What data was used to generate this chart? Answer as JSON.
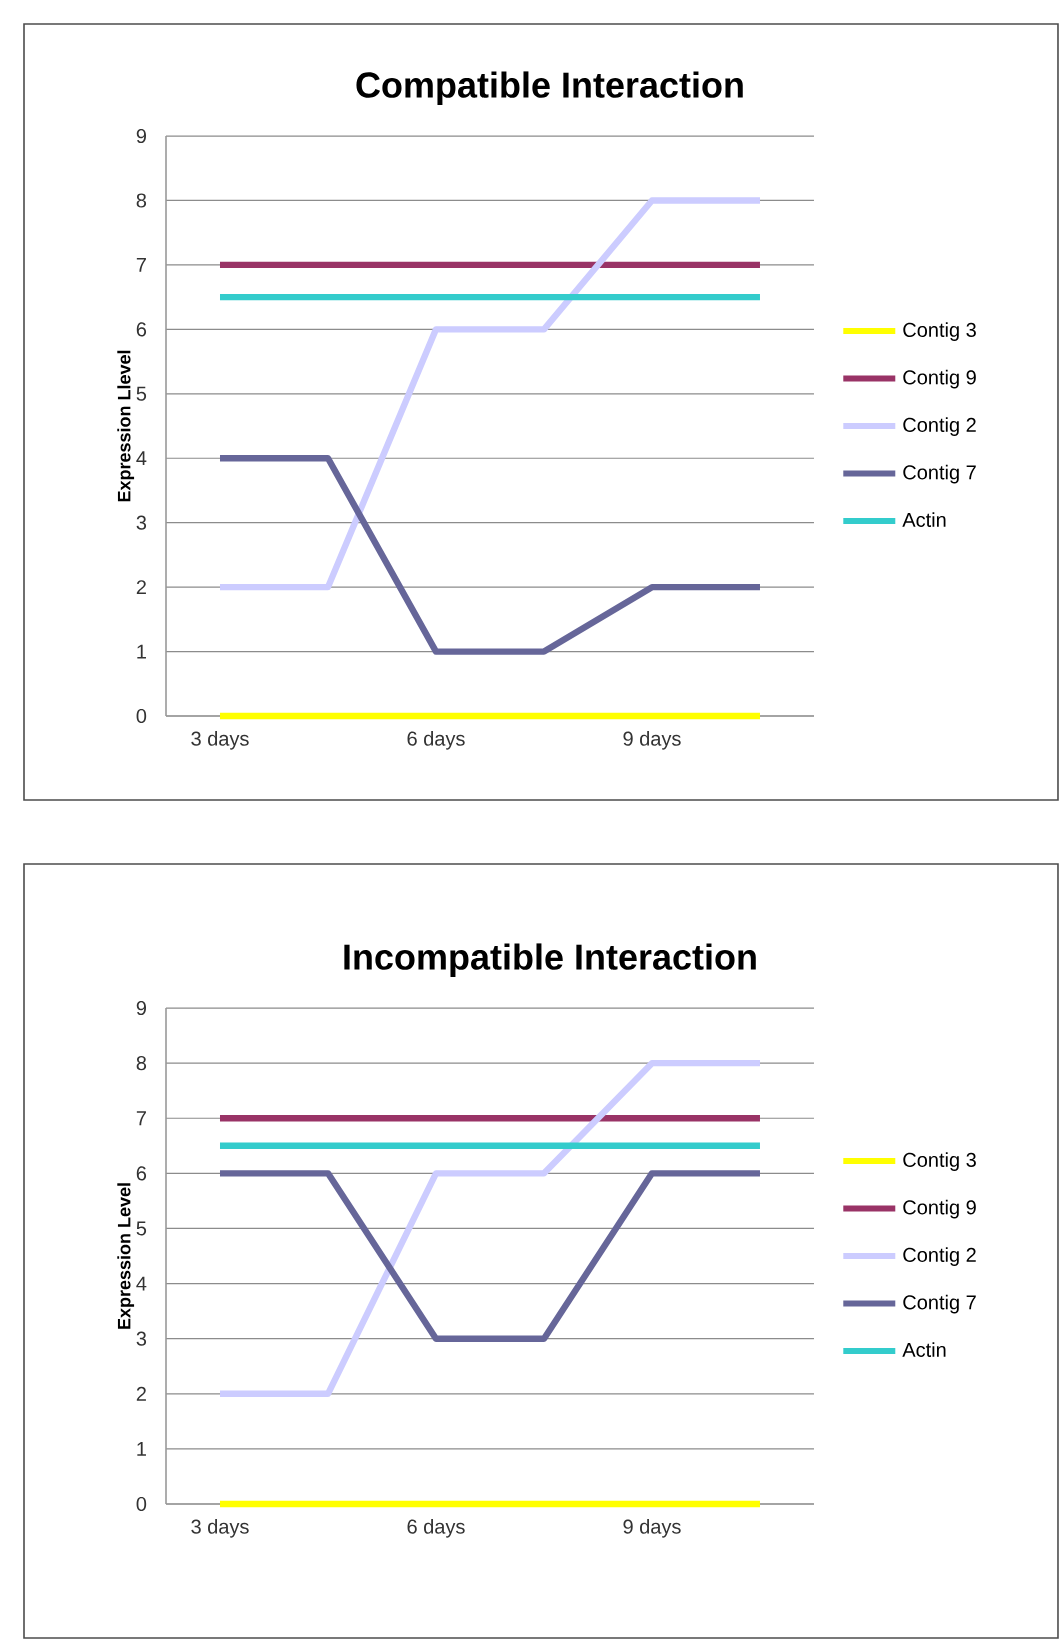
{
  "chart_data": [
    {
      "type": "line",
      "title": "Compatible Interaction",
      "ylabel": "Expression Llevel",
      "categories": [
        "3 days",
        null,
        "6 days",
        null,
        "9 days",
        null
      ],
      "ylim": [
        0,
        9
      ],
      "yticks": [
        0,
        1,
        2,
        3,
        4,
        5,
        6,
        7,
        8,
        9
      ],
      "grid": "y",
      "legend": "right",
      "marker": "none",
      "series": [
        {
          "name": "Contig 3",
          "color": "#ffff00",
          "values": [
            0,
            0,
            0,
            0,
            0,
            0
          ]
        },
        {
          "name": "Contig 9",
          "color": "#993366",
          "values": [
            7,
            7,
            7,
            7,
            7,
            7
          ]
        },
        {
          "name": "Contig 2",
          "color": "#ccccff",
          "values": [
            2,
            2,
            6,
            6,
            8,
            8
          ]
        },
        {
          "name": "Contig 7",
          "color": "#666699",
          "values": [
            4,
            4,
            1,
            1,
            2,
            2
          ]
        },
        {
          "name": "Actin",
          "color": "#33cccc",
          "values": [
            6.5,
            6.5,
            6.5,
            6.5,
            6.5,
            6.5
          ]
        }
      ]
    },
    {
      "type": "line",
      "title": "Incompatible Interaction",
      "ylabel": "Expression Level",
      "categories": [
        "3 days",
        null,
        "6 days",
        null,
        "9 days",
        null
      ],
      "ylim": [
        0,
        9
      ],
      "yticks": [
        0,
        1,
        2,
        3,
        4,
        5,
        6,
        7,
        8,
        9
      ],
      "grid": "y",
      "legend": "right",
      "marker": "none",
      "series": [
        {
          "name": "Contig 3",
          "color": "#ffff00",
          "values": [
            0,
            0,
            0,
            0,
            0,
            0
          ]
        },
        {
          "name": "Contig 9",
          "color": "#993366",
          "values": [
            7,
            7,
            7,
            7,
            7,
            7
          ]
        },
        {
          "name": "Contig 2",
          "color": "#ccccff",
          "values": [
            2,
            2,
            6,
            6,
            8,
            8
          ]
        },
        {
          "name": "Contig 7",
          "color": "#666699",
          "values": [
            6,
            6,
            3,
            3,
            6,
            6
          ]
        },
        {
          "name": "Actin",
          "color": "#33cccc",
          "values": [
            6.5,
            6.5,
            6.5,
            6.5,
            6.5,
            6.5
          ]
        }
      ]
    }
  ]
}
